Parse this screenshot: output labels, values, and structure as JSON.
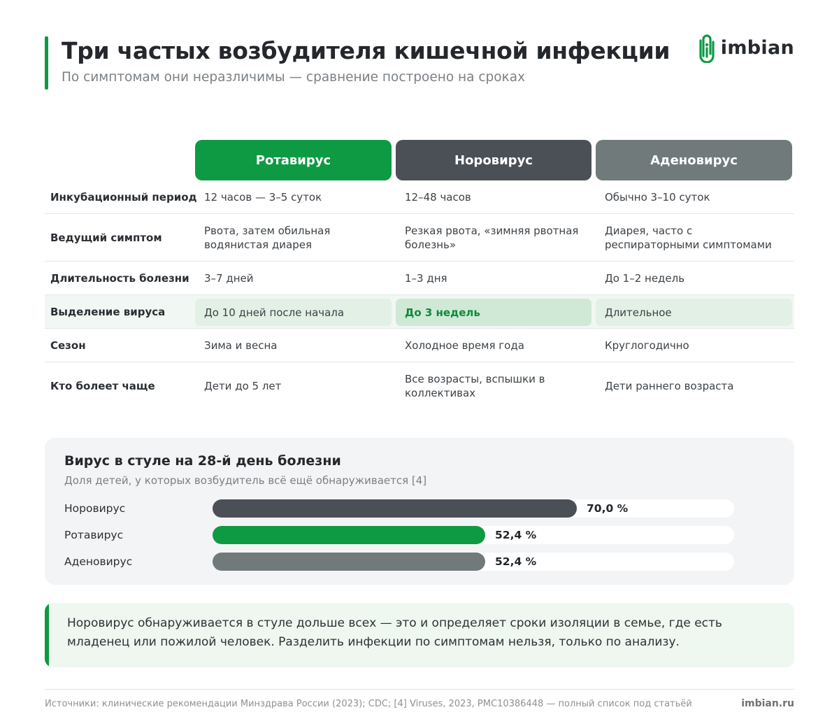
{
  "header": {
    "title": "Три частых возбудителя кишечной инфекции",
    "subtitle": "По симптомам они неразличимы — сравнение построено на сроках",
    "logo_text": "imbian",
    "logo_icon": "paperclip-i-icon",
    "accent_color": "#0e9a43"
  },
  "table": {
    "columns": [
      "Ротавирус",
      "Норовирус",
      "Аденовирус"
    ],
    "column_colors": [
      "#0e9a43",
      "#4b5057",
      "#707a7b"
    ],
    "rows": [
      {
        "label": "Инкубационный период",
        "cells": [
          "12 часов — 3–5 суток",
          "12–48 часов",
          "Обычно 3–10 суток"
        ]
      },
      {
        "label": "Ведущий симптом",
        "cells": [
          "Рвота, затем обильная водянистая диарея",
          "Резкая рвота, «зимняя рвотная болезнь»",
          "Диарея, часто с респираторными симптомами"
        ]
      },
      {
        "label": "Длительность болезни",
        "cells": [
          "3–7 дней",
          "1–3 дня",
          "До 1–2 недель"
        ]
      },
      {
        "label": "Выделение вируса",
        "cells": [
          "До 10 дней после начала",
          "До 3 недель",
          "Длительное"
        ],
        "highlighted": true
      },
      {
        "label": "Сезон",
        "cells": [
          "Зима и весна",
          "Холодное время года",
          "Круглогодично"
        ]
      },
      {
        "label": "Кто болеет чаще",
        "cells": [
          "Дети до 5 лет",
          "Все возрасты, вспышки в коллективах",
          "Дети раннего возраста"
        ]
      }
    ]
  },
  "chart_data": {
    "type": "bar",
    "orientation": "horizontal",
    "title": "Вирус в стуле на 28-й день болезни",
    "subtitle": "Доля детей, у которых возбудитель всё ещё обнаруживается [4]",
    "categories": [
      "Норовирус",
      "Ротавирус",
      "Аденовирус"
    ],
    "values": [
      70.0,
      52.4,
      52.4
    ],
    "value_labels": [
      "70,0 %",
      "52,4 %",
      "52,4 %"
    ],
    "colors": [
      "#4b5057",
      "#0e9a43",
      "#707a7b"
    ],
    "xlim": [
      0,
      100
    ],
    "grid": false,
    "legend": "none"
  },
  "note": {
    "text": "Норовирус обнаруживается в стуле дольше всех — это и определяет сроки изоляции в семье, где есть младенец или пожилой человек. Разделить инфекции по симптомам нельзя, только по анализу."
  },
  "footer": {
    "sources": "Источники: клинические рекомендации Минздрава России (2023); CDC; [4] Viruses, 2023, PMC10386448 — полный список под статьёй",
    "site": "imbian.ru"
  }
}
